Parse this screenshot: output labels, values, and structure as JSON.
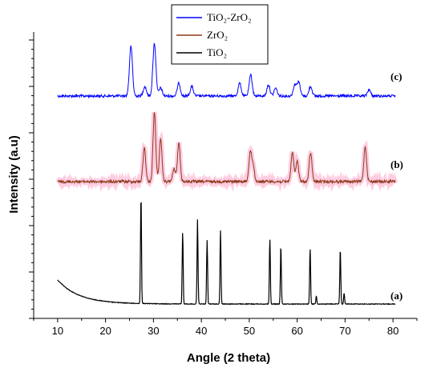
{
  "chart_data": {
    "type": "line",
    "xlabel": "Angle (2 theta)",
    "ylabel": "Intensity (a.u)",
    "xlim": [
      5,
      85
    ],
    "x_ticks": [
      10,
      20,
      30,
      40,
      50,
      60,
      70,
      80
    ],
    "grid": false,
    "legend_position": "top-center",
    "series": [
      {
        "name": "TiO₂-ZrO₂",
        "curve_label": "(c)",
        "color": "#0000ff",
        "peaks": [
          {
            "x": 25.3,
            "h": 62
          },
          {
            "x": 28.2,
            "h": 12
          },
          {
            "x": 30.2,
            "h": 66
          },
          {
            "x": 31.5,
            "h": 10
          },
          {
            "x": 35.3,
            "h": 16
          },
          {
            "x": 38.0,
            "h": 12
          },
          {
            "x": 48.0,
            "h": 16
          },
          {
            "x": 50.3,
            "h": 26
          },
          {
            "x": 54.0,
            "h": 14
          },
          {
            "x": 55.5,
            "h": 10
          },
          {
            "x": 59.5,
            "h": 14
          },
          {
            "x": 60.3,
            "h": 18
          },
          {
            "x": 62.8,
            "h": 12
          },
          {
            "x": 75.0,
            "h": 8
          }
        ]
      },
      {
        "name": "ZrO₂",
        "curve_label": "(b)",
        "color": "#8b3a1a",
        "peaks": [
          {
            "x": 28.1,
            "h": 42
          },
          {
            "x": 30.2,
            "h": 86
          },
          {
            "x": 31.5,
            "h": 52
          },
          {
            "x": 34.3,
            "h": 16
          },
          {
            "x": 35.3,
            "h": 48
          },
          {
            "x": 50.2,
            "h": 36
          },
          {
            "x": 50.8,
            "h": 20
          },
          {
            "x": 59.0,
            "h": 36
          },
          {
            "x": 60.0,
            "h": 26
          },
          {
            "x": 62.8,
            "h": 36
          },
          {
            "x": 74.2,
            "h": 44
          }
        ]
      },
      {
        "name": "TiO₂",
        "curve_label": "(a)",
        "color": "#000000",
        "peaks": [
          {
            "x": 27.4,
            "h": 136
          },
          {
            "x": 36.1,
            "h": 90
          },
          {
            "x": 39.2,
            "h": 106
          },
          {
            "x": 41.2,
            "h": 80
          },
          {
            "x": 44.0,
            "h": 92
          },
          {
            "x": 54.3,
            "h": 82
          },
          {
            "x": 56.6,
            "h": 74
          },
          {
            "x": 62.7,
            "h": 70
          },
          {
            "x": 64.0,
            "h": 10
          },
          {
            "x": 69.0,
            "h": 70
          },
          {
            "x": 69.8,
            "h": 14
          }
        ]
      }
    ]
  }
}
